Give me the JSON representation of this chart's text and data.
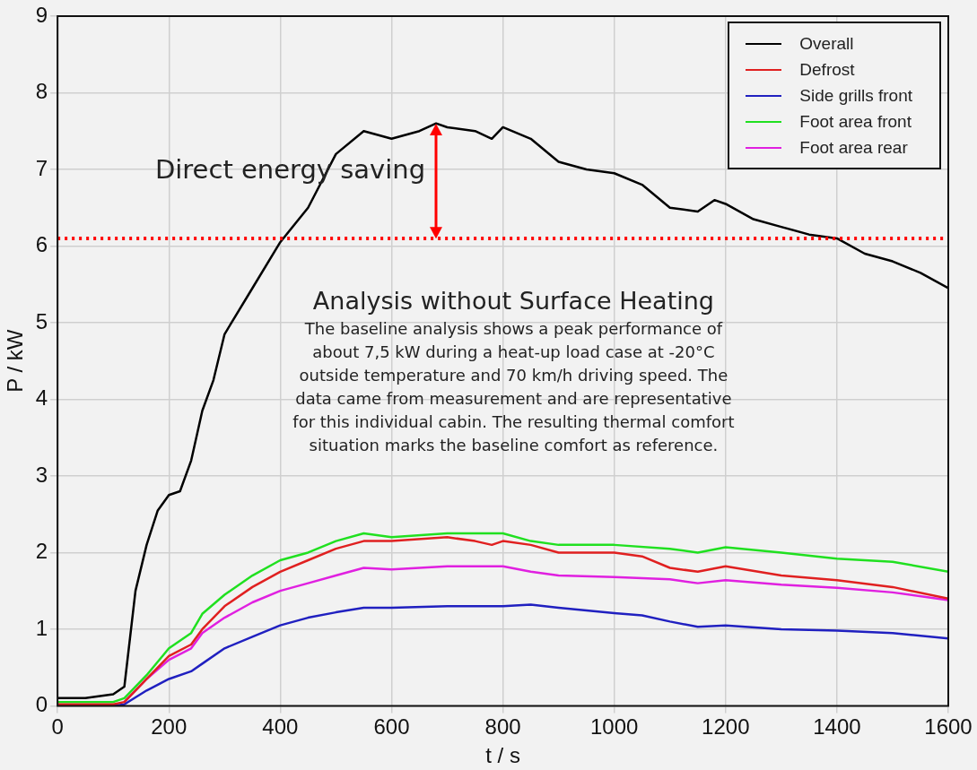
{
  "chart_data": {
    "type": "line",
    "xlabel": "t / s",
    "ylabel": "P / kW",
    "xlim": [
      0,
      1600
    ],
    "xticks": [
      0,
      200,
      400,
      600,
      800,
      1000,
      1200,
      1400,
      1600
    ],
    "ylim": [
      0,
      9
    ],
    "yticks": [
      0,
      1,
      2,
      3,
      4,
      5,
      6,
      7,
      8,
      9
    ],
    "grid": true,
    "legend": "top right",
    "marker": "none",
    "line_style": "solid",
    "series": [
      {
        "name": "Overall",
        "color": "#000000",
        "x": [
          0,
          50,
          100,
          120,
          140,
          160,
          180,
          200,
          220,
          240,
          260,
          280,
          300,
          350,
          400,
          450,
          500,
          550,
          600,
          650,
          680,
          700,
          750,
          780,
          800,
          850,
          900,
          950,
          1000,
          1050,
          1100,
          1150,
          1180,
          1200,
          1250,
          1300,
          1350,
          1400,
          1450,
          1500,
          1550,
          1600
        ],
        "values": [
          0.1,
          0.1,
          0.15,
          0.25,
          1.5,
          2.1,
          2.55,
          2.75,
          2.8,
          3.2,
          3.85,
          4.25,
          4.85,
          5.45,
          6.05,
          6.5,
          7.2,
          7.5,
          7.4,
          7.5,
          7.6,
          7.55,
          7.5,
          7.4,
          7.55,
          7.4,
          7.1,
          7.0,
          6.95,
          6.8,
          6.5,
          6.45,
          6.6,
          6.55,
          6.35,
          6.25,
          6.15,
          6.1,
          5.9,
          5.8,
          5.65,
          5.45
        ]
      },
      {
        "name": "Defrost",
        "color": "#e02020",
        "x": [
          0,
          100,
          120,
          160,
          200,
          240,
          260,
          300,
          350,
          400,
          450,
          500,
          550,
          600,
          700,
          750,
          780,
          800,
          850,
          900,
          1000,
          1050,
          1100,
          1150,
          1200,
          1300,
          1400,
          1500,
          1600
        ],
        "values": [
          0.02,
          0.02,
          0.05,
          0.35,
          0.65,
          0.8,
          1.0,
          1.3,
          1.55,
          1.75,
          1.9,
          2.05,
          2.15,
          2.15,
          2.2,
          2.15,
          2.1,
          2.15,
          2.1,
          2.0,
          2.0,
          1.95,
          1.8,
          1.75,
          1.82,
          1.7,
          1.64,
          1.55,
          1.4
        ]
      },
      {
        "name": "Side grills front",
        "color": "#2020c0",
        "x": [
          0,
          100,
          120,
          160,
          200,
          240,
          260,
          300,
          350,
          400,
          450,
          500,
          550,
          600,
          700,
          800,
          850,
          900,
          1000,
          1050,
          1100,
          1150,
          1200,
          1300,
          1400,
          1500,
          1600
        ],
        "values": [
          0,
          0,
          0.02,
          0.2,
          0.35,
          0.45,
          0.55,
          0.75,
          0.9,
          1.05,
          1.15,
          1.22,
          1.28,
          1.28,
          1.3,
          1.3,
          1.32,
          1.28,
          1.21,
          1.18,
          1.1,
          1.03,
          1.05,
          1.0,
          0.98,
          0.95,
          0.88
        ]
      },
      {
        "name": "Foot area front",
        "color": "#20e020",
        "x": [
          0,
          100,
          120,
          160,
          200,
          240,
          260,
          300,
          350,
          400,
          450,
          500,
          550,
          600,
          700,
          800,
          850,
          900,
          1000,
          1100,
          1150,
          1200,
          1300,
          1400,
          1500,
          1600
        ],
        "values": [
          0.05,
          0.05,
          0.1,
          0.4,
          0.75,
          0.95,
          1.2,
          1.45,
          1.7,
          1.9,
          2.0,
          2.15,
          2.25,
          2.2,
          2.25,
          2.25,
          2.15,
          2.1,
          2.1,
          2.05,
          2.0,
          2.07,
          2.0,
          1.92,
          1.88,
          1.75
        ]
      },
      {
        "name": "Foot area rear",
        "color": "#e020e0",
        "x": [
          120,
          160,
          200,
          240,
          260,
          300,
          350,
          400,
          450,
          500,
          550,
          600,
          700,
          800,
          850,
          900,
          1000,
          1100,
          1150,
          1200,
          1300,
          1400,
          1500,
          1600
        ],
        "values": [
          0.05,
          0.35,
          0.6,
          0.75,
          0.95,
          1.15,
          1.35,
          1.5,
          1.6,
          1.7,
          1.8,
          1.78,
          1.82,
          1.82,
          1.75,
          1.7,
          1.68,
          1.65,
          1.6,
          1.64,
          1.58,
          1.54,
          1.48,
          1.38
        ]
      }
    ],
    "ref_lines": [
      {
        "axis": "y",
        "value": 6.1,
        "color": "#ff0000",
        "line_style": "dotted"
      }
    ],
    "annotations": [
      "Direct energy saving",
      "Analysis without Surface Heating",
      "The baseline analysis shows a peak performance of about 7,5 kW during a heat-up load case at -20°C outside temperature and 70 km/h driving speed. The data came from measurement and are representative for this individual cabin. The resulting thermal comfort situation marks the baseline comfort as reference."
    ]
  }
}
